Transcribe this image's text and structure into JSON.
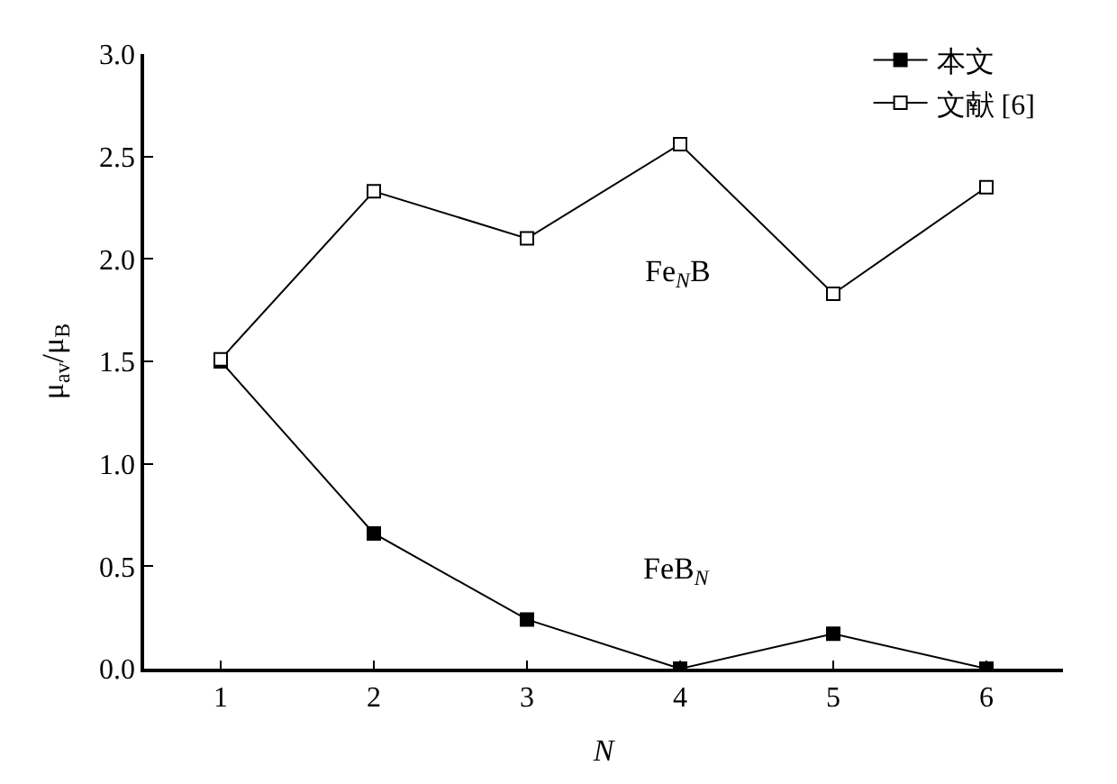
{
  "chart_data": {
    "type": "line",
    "xlabel": "N",
    "ylabel": "μ$_{av}$/μ$_{B}$",
    "x": [
      1,
      2,
      3,
      4,
      5,
      6
    ],
    "series": [
      {
        "name": "本文",
        "color": "#000000",
        "marker": "square",
        "values": [
          1.5,
          0.66,
          0.24,
          0,
          0.17,
          0
        ]
      },
      {
        "name": "文献 [6]",
        "color": "#000000",
        "marker": "square-open",
        "values": [
          1.51,
          2.33,
          2.1,
          2.56,
          1.83,
          2.35
        ]
      }
    ],
    "xlim": [
      0.5,
      6.5
    ],
    "xticks": [
      1,
      2,
      3,
      4,
      5,
      6
    ],
    "ylim": [
      0,
      3
    ],
    "yticks": [
      {
        "value": 0,
        "label": "0.0"
      },
      0.5,
      {
        "value": 1,
        "label": "1.0"
      },
      1.5,
      {
        "value": 2,
        "label": "2.0"
      },
      2.5,
      {
        "value": 3,
        "label": "3.0"
      }
    ],
    "annotations": [
      "Fe$_{N}$B",
      "FeB$_{N}$"
    ],
    "legend": "top right",
    "line_style": "solid"
  }
}
